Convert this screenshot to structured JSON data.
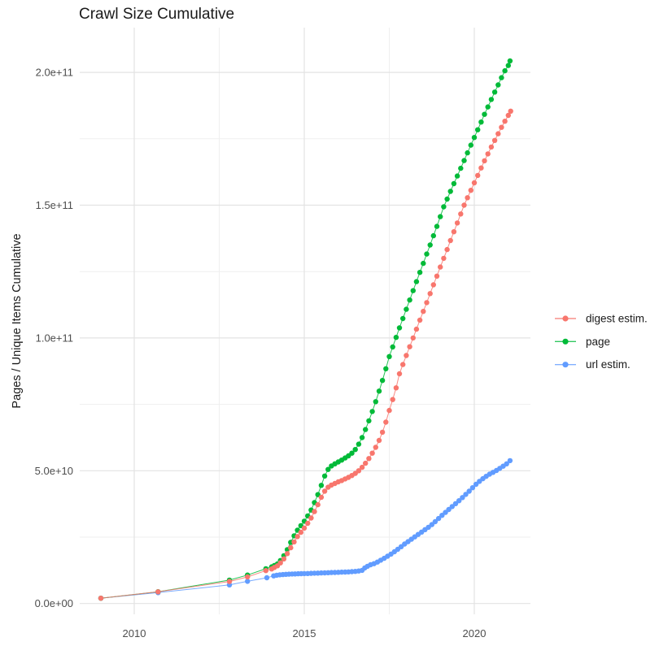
{
  "title": "Crawl Size Cumulative",
  "colors": {
    "digest": "#F8766D",
    "page": "#00BA38",
    "url": "#619CFF",
    "grid_major": "#E3E3E3",
    "grid_minor": "#EFEFEF",
    "tick_text": "#4D4D4D",
    "title_text": "#1a1a1a"
  },
  "legend": {
    "items": [
      {
        "label": "digest estim.",
        "color": "#F8766D"
      },
      {
        "label": "page",
        "color": "#00BA38"
      },
      {
        "label": "url estim.",
        "color": "#619CFF"
      }
    ]
  },
  "chart_data": {
    "type": "line",
    "title": "Crawl Size Cumulative",
    "xlabel": "",
    "ylabel": "Pages / Unique Items Cumulative",
    "unit_note": "values stored in billions (1e9)",
    "xlim": [
      2008.45,
      2021.8
    ],
    "ylim_billions": [
      -4,
      217
    ],
    "grid": "on",
    "legend_position": "right",
    "x_ticks": [
      {
        "label": "2010",
        "year": 2010
      },
      {
        "label": "2015",
        "year": 2015
      },
      {
        "label": "2020",
        "year": 2020
      }
    ],
    "x_minor_years": [
      2012.5,
      2017.5
    ],
    "y_ticks": [
      {
        "label": "0.0e+00",
        "billions": 0
      },
      {
        "label": "5.0e+10",
        "billions": 50
      },
      {
        "label": "1.0e+11",
        "billions": 100
      },
      {
        "label": "1.5e+11",
        "billions": 150
      },
      {
        "label": "2.0e+11",
        "billions": 200
      }
    ],
    "y_minor_billions": [
      25,
      75,
      125,
      175
    ],
    "series": [
      {
        "name": "digest estim.",
        "color": "#F8766D",
        "points": [
          [
            2009.02,
            2.0
          ],
          [
            2010.7,
            4.4
          ],
          [
            2012.8,
            8.3
          ],
          [
            2013.33,
            10.0
          ],
          [
            2013.87,
            12.4
          ],
          [
            2014.04,
            13.0
          ],
          [
            2014.12,
            13.6
          ],
          [
            2014.21,
            14.2
          ],
          [
            2014.3,
            15.3
          ],
          [
            2014.4,
            16.8
          ],
          [
            2014.5,
            18.8
          ],
          [
            2014.6,
            21.0
          ],
          [
            2014.7,
            23.2
          ],
          [
            2014.8,
            25.2
          ],
          [
            2014.9,
            26.8
          ],
          [
            2015.0,
            28.4
          ],
          [
            2015.1,
            30.2
          ],
          [
            2015.2,
            32.2
          ],
          [
            2015.3,
            34.6
          ],
          [
            2015.4,
            37.2
          ],
          [
            2015.5,
            40.0
          ],
          [
            2015.6,
            42.3
          ],
          [
            2015.7,
            43.8
          ],
          [
            2015.8,
            44.6
          ],
          [
            2015.9,
            45.2
          ],
          [
            2016.0,
            45.8
          ],
          [
            2016.1,
            46.3
          ],
          [
            2016.2,
            46.9
          ],
          [
            2016.3,
            47.5
          ],
          [
            2016.4,
            48.2
          ],
          [
            2016.5,
            49.0
          ],
          [
            2016.6,
            50.0
          ],
          [
            2016.7,
            51.3
          ],
          [
            2016.8,
            52.8
          ],
          [
            2016.9,
            54.6
          ],
          [
            2017.0,
            56.6
          ],
          [
            2017.1,
            58.8
          ],
          [
            2017.2,
            61.4
          ],
          [
            2017.3,
            64.5
          ],
          [
            2017.4,
            68.3
          ],
          [
            2017.5,
            72.7
          ],
          [
            2017.6,
            76.8
          ],
          [
            2017.7,
            81.2
          ],
          [
            2017.8,
            86.5
          ],
          [
            2017.9,
            90.0
          ],
          [
            2018.0,
            93.4
          ],
          [
            2018.1,
            96.7
          ],
          [
            2018.2,
            100.0
          ],
          [
            2018.3,
            103.3
          ],
          [
            2018.4,
            106.7
          ],
          [
            2018.5,
            110.0
          ],
          [
            2018.6,
            113.3
          ],
          [
            2018.7,
            116.7
          ],
          [
            2018.8,
            120.0
          ],
          [
            2018.9,
            123.3
          ],
          [
            2019.0,
            126.7
          ],
          [
            2019.1,
            130.0
          ],
          [
            2019.2,
            133.3
          ],
          [
            2019.3,
            136.7
          ],
          [
            2019.4,
            140.0
          ],
          [
            2019.5,
            143.3
          ],
          [
            2019.6,
            146.7
          ],
          [
            2019.7,
            150.0
          ],
          [
            2019.8,
            152.8
          ],
          [
            2019.9,
            155.6
          ],
          [
            2020.0,
            158.4
          ],
          [
            2020.1,
            161.2
          ],
          [
            2020.2,
            164.0
          ],
          [
            2020.3,
            166.7
          ],
          [
            2020.4,
            169.3
          ],
          [
            2020.5,
            171.9
          ],
          [
            2020.6,
            174.4
          ],
          [
            2020.7,
            176.9
          ],
          [
            2020.8,
            179.3
          ],
          [
            2020.9,
            181.6
          ],
          [
            2021.0,
            183.8
          ],
          [
            2021.07,
            185.4
          ]
        ]
      },
      {
        "name": "page",
        "color": "#00BA38",
        "points": [
          [
            2009.02,
            2.0
          ],
          [
            2010.7,
            4.45
          ],
          [
            2012.8,
            8.8
          ],
          [
            2013.33,
            10.7
          ],
          [
            2013.87,
            13.1
          ],
          [
            2014.04,
            13.8
          ],
          [
            2014.12,
            14.3
          ],
          [
            2014.21,
            14.9
          ],
          [
            2014.3,
            16.2
          ],
          [
            2014.4,
            18.0
          ],
          [
            2014.5,
            20.3
          ],
          [
            2014.6,
            23.0
          ],
          [
            2014.7,
            25.5
          ],
          [
            2014.8,
            27.6
          ],
          [
            2014.9,
            29.3
          ],
          [
            2015.0,
            31.0
          ],
          [
            2015.1,
            33.0
          ],
          [
            2015.2,
            35.2
          ],
          [
            2015.3,
            38.0
          ],
          [
            2015.4,
            41.0
          ],
          [
            2015.5,
            44.5
          ],
          [
            2015.6,
            48.0
          ],
          [
            2015.7,
            50.5
          ],
          [
            2015.8,
            51.8
          ],
          [
            2015.9,
            52.6
          ],
          [
            2016.0,
            53.3
          ],
          [
            2016.1,
            54.0
          ],
          [
            2016.2,
            54.8
          ],
          [
            2016.3,
            55.6
          ],
          [
            2016.4,
            56.6
          ],
          [
            2016.5,
            58.0
          ],
          [
            2016.6,
            60.0
          ],
          [
            2016.7,
            62.5
          ],
          [
            2016.8,
            65.5
          ],
          [
            2016.9,
            68.8
          ],
          [
            2017.0,
            72.3
          ],
          [
            2017.1,
            76.0
          ],
          [
            2017.2,
            80.0
          ],
          [
            2017.3,
            84.0
          ],
          [
            2017.4,
            88.4
          ],
          [
            2017.5,
            93.0
          ],
          [
            2017.6,
            96.6
          ],
          [
            2017.7,
            100.2
          ],
          [
            2017.8,
            103.8
          ],
          [
            2017.9,
            107.3
          ],
          [
            2018.0,
            110.8
          ],
          [
            2018.1,
            114.3
          ],
          [
            2018.2,
            117.8
          ],
          [
            2018.3,
            121.2
          ],
          [
            2018.4,
            124.7
          ],
          [
            2018.5,
            128.1
          ],
          [
            2018.6,
            131.6
          ],
          [
            2018.7,
            135.0
          ],
          [
            2018.8,
            138.5
          ],
          [
            2018.9,
            142.0
          ],
          [
            2019.0,
            145.7
          ],
          [
            2019.1,
            149.4
          ],
          [
            2019.2,
            152.3
          ],
          [
            2019.3,
            155.2
          ],
          [
            2019.4,
            158.1
          ],
          [
            2019.5,
            161.0
          ],
          [
            2019.6,
            163.9
          ],
          [
            2019.7,
            166.8
          ],
          [
            2019.8,
            169.7
          ],
          [
            2019.9,
            172.6
          ],
          [
            2020.0,
            175.5
          ],
          [
            2020.1,
            178.4
          ],
          [
            2020.2,
            181.3
          ],
          [
            2020.3,
            184.2
          ],
          [
            2020.4,
            187.0
          ],
          [
            2020.5,
            189.8
          ],
          [
            2020.6,
            192.6
          ],
          [
            2020.7,
            195.3
          ],
          [
            2020.8,
            198.0
          ],
          [
            2020.9,
            200.6
          ],
          [
            2021.0,
            202.6
          ],
          [
            2021.05,
            204.3
          ]
        ]
      },
      {
        "name": "url estim.",
        "color": "#619CFF",
        "points": [
          [
            2009.02,
            2.0
          ],
          [
            2010.7,
            4.1
          ],
          [
            2012.8,
            7.0
          ],
          [
            2013.33,
            8.35
          ],
          [
            2013.9,
            9.7
          ],
          [
            2014.1,
            10.4
          ],
          [
            2014.19,
            10.65
          ],
          [
            2014.28,
            10.8
          ],
          [
            2014.37,
            10.9
          ],
          [
            2014.46,
            11.0
          ],
          [
            2014.55,
            11.05
          ],
          [
            2014.64,
            11.1
          ],
          [
            2014.73,
            11.15
          ],
          [
            2014.82,
            11.2
          ],
          [
            2014.91,
            11.22
          ],
          [
            2015.0,
            11.25
          ],
          [
            2015.1,
            11.3
          ],
          [
            2015.2,
            11.35
          ],
          [
            2015.3,
            11.4
          ],
          [
            2015.4,
            11.45
          ],
          [
            2015.5,
            11.5
          ],
          [
            2015.6,
            11.55
          ],
          [
            2015.7,
            11.6
          ],
          [
            2015.8,
            11.65
          ],
          [
            2015.9,
            11.7
          ],
          [
            2016.0,
            11.75
          ],
          [
            2016.1,
            11.8
          ],
          [
            2016.2,
            11.85
          ],
          [
            2016.3,
            11.9
          ],
          [
            2016.4,
            12.0
          ],
          [
            2016.5,
            12.1
          ],
          [
            2016.6,
            12.25
          ],
          [
            2016.7,
            12.5
          ],
          [
            2016.78,
            13.4
          ],
          [
            2016.86,
            14.0
          ],
          [
            2016.95,
            14.6
          ],
          [
            2017.05,
            15.0
          ],
          [
            2017.15,
            15.6
          ],
          [
            2017.25,
            16.3
          ],
          [
            2017.35,
            17.0
          ],
          [
            2017.45,
            17.8
          ],
          [
            2017.55,
            18.6
          ],
          [
            2017.65,
            19.5
          ],
          [
            2017.75,
            20.4
          ],
          [
            2017.85,
            21.4
          ],
          [
            2017.95,
            22.4
          ],
          [
            2018.05,
            23.3
          ],
          [
            2018.15,
            24.2
          ],
          [
            2018.25,
            25.1
          ],
          [
            2018.35,
            26.0
          ],
          [
            2018.45,
            26.9
          ],
          [
            2018.55,
            27.8
          ],
          [
            2018.65,
            28.7
          ],
          [
            2018.75,
            29.7
          ],
          [
            2018.85,
            30.8
          ],
          [
            2018.95,
            32.0
          ],
          [
            2019.05,
            33.2
          ],
          [
            2019.15,
            34.3
          ],
          [
            2019.25,
            35.4
          ],
          [
            2019.35,
            36.5
          ],
          [
            2019.45,
            37.6
          ],
          [
            2019.55,
            38.7
          ],
          [
            2019.65,
            39.9
          ],
          [
            2019.75,
            41.1
          ],
          [
            2019.85,
            42.3
          ],
          [
            2019.95,
            43.6
          ],
          [
            2020.05,
            44.9
          ],
          [
            2020.15,
            46.0
          ],
          [
            2020.25,
            47.0
          ],
          [
            2020.35,
            47.9
          ],
          [
            2020.45,
            48.7
          ],
          [
            2020.55,
            49.4
          ],
          [
            2020.65,
            50.1
          ],
          [
            2020.75,
            50.9
          ],
          [
            2020.85,
            51.7
          ],
          [
            2020.95,
            52.6
          ],
          [
            2021.05,
            53.8
          ]
        ]
      }
    ]
  }
}
